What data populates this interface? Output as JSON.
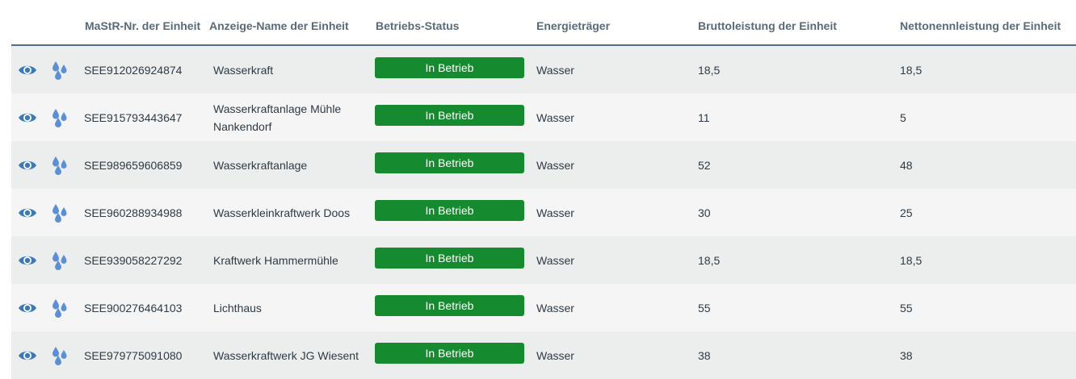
{
  "headers": {
    "mastr_nr": "MaStR-Nr. der Einheit",
    "name": "Anzeige-Name der Einheit",
    "status": "Betriebs-Status",
    "energy": "Energieträger",
    "gross": "Bruttoleistung der Einheit",
    "net": "Nettonennleistung der Einheit"
  },
  "icons": {
    "view": "eye-icon",
    "energy_type": "water-drops-icon",
    "accent_color": "#3c79b8",
    "drop_color": "#5b8fd6"
  },
  "status_color": "#168a2f",
  "rows": [
    {
      "mastr_nr": "SEE912026924874",
      "name": "Wasserkraft",
      "status": "In Betrieb",
      "energy": "Wasser",
      "gross": "18,5",
      "net": "18,5"
    },
    {
      "mastr_nr": "SEE915793443647",
      "name": "Wasserkraftanlage Mühle Nankendorf",
      "status": "In Betrieb",
      "energy": "Wasser",
      "gross": "11",
      "net": "5"
    },
    {
      "mastr_nr": "SEE989659606859",
      "name": "Wasserkraftanlage",
      "status": "In Betrieb",
      "energy": "Wasser",
      "gross": "52",
      "net": "48"
    },
    {
      "mastr_nr": "SEE960288934988",
      "name": "Wasserkleinkraftwerk Doos",
      "status": "In Betrieb",
      "energy": "Wasser",
      "gross": "30",
      "net": "25"
    },
    {
      "mastr_nr": "SEE939058227292",
      "name": "Kraftwerk Hammermühle",
      "status": "In Betrieb",
      "energy": "Wasser",
      "gross": "18,5",
      "net": "18,5"
    },
    {
      "mastr_nr": "SEE900276464103",
      "name": "Lichthaus",
      "status": "In Betrieb",
      "energy": "Wasser",
      "gross": "55",
      "net": "55"
    },
    {
      "mastr_nr": "SEE979775091080",
      "name": "Wasserkraftwerk JG Wiesent",
      "status": "In Betrieb",
      "energy": "Wasser",
      "gross": "38",
      "net": "38"
    }
  ]
}
